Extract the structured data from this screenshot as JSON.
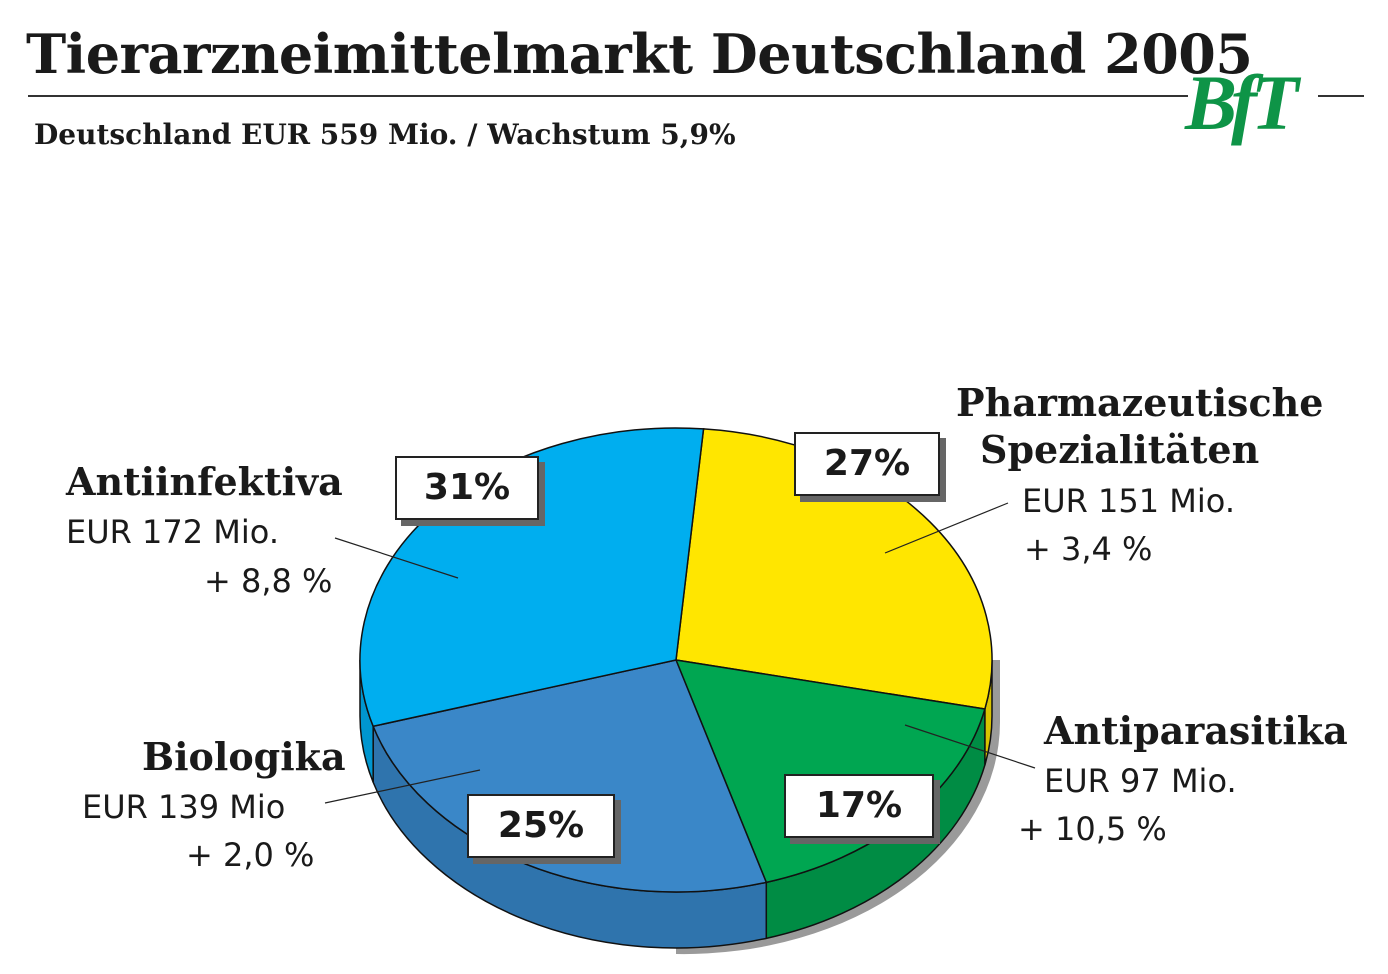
{
  "chart_data": {
    "type": "pie",
    "title": "Tierarzneimittelmarkt Deutschland 2005",
    "subtitle": "Deutschland EUR 559 Mio. / Wachstum 5,9%",
    "logo_text": "BfT",
    "slices": [
      {
        "name": "Pharmazeutische Spezialitäten",
        "name_line1": "Pharmazeutische",
        "name_line2": "Spezialitäten",
        "value_label": "EUR 151 Mio.",
        "growth": "+ 3,4 %",
        "percent": 27,
        "percent_label": "27%",
        "color": "#ffe600",
        "side_color": "#d9c400"
      },
      {
        "name": "Antiparasitika",
        "value_label": "EUR 97 Mio.",
        "growth": "+ 10,5 %",
        "percent": 17,
        "percent_label": "17%",
        "color": "#00a651",
        "side_color": "#008c44"
      },
      {
        "name": "Biologika",
        "value_label": "EUR 139 Mio",
        "growth": "+ 2,0 %",
        "percent": 25,
        "percent_label": "25%",
        "color": "#3a87c8",
        "side_color": "#2f74ad"
      },
      {
        "name": "Antiinfektiva",
        "value_label": "EUR 172 Mio.",
        "growth": "+ 8,8 %",
        "percent": 31,
        "percent_label": "31%",
        "color": "#00aeef",
        "side_color": "#0096cf"
      }
    ]
  }
}
